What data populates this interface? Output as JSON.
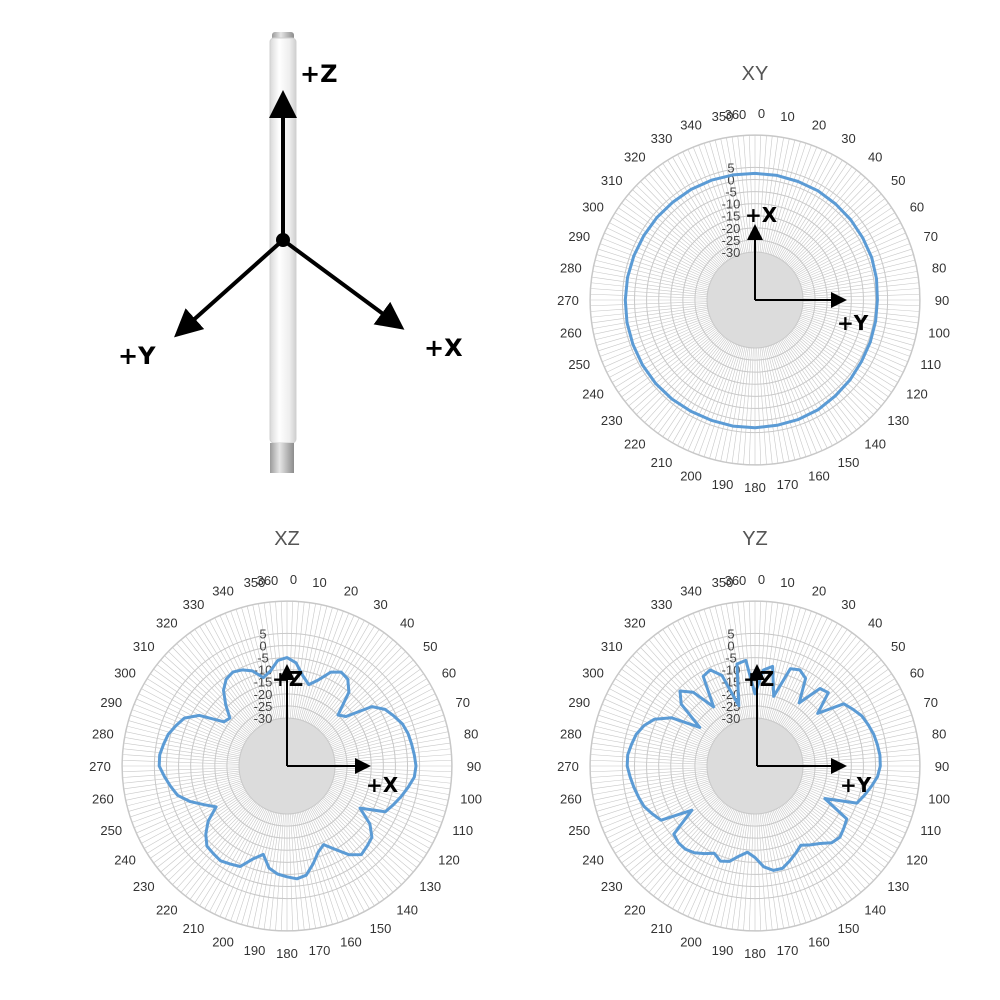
{
  "antenna_diagram": {
    "axes": [
      "+Z",
      "+Y",
      "+X"
    ]
  },
  "colors": {
    "pattern_line": "#5b9bd5",
    "grid": "#c8c8c8",
    "center_disc": "#dcdcdc"
  },
  "chart_data": [
    {
      "type": "polar-line",
      "title": "XY",
      "rlim": [
        -30,
        5
      ],
      "ring_labels": [
        "5",
        "0",
        "-5",
        "-10",
        "-15",
        "-20",
        "-25",
        "-30"
      ],
      "angle_labels": [
        "0",
        "10",
        "20",
        "30",
        "40",
        "50",
        "60",
        "70",
        "80",
        "90",
        "100",
        "110",
        "120",
        "130",
        "140",
        "150",
        "160",
        "170",
        "180",
        "190",
        "200",
        "210",
        "220",
        "230",
        "240",
        "250",
        "260",
        "270",
        "280",
        "290",
        "300",
        "310",
        "320",
        "330",
        "340",
        "350",
        "360"
      ],
      "axis_labels": [
        "+X",
        "+Y"
      ],
      "angles": [
        0,
        10,
        20,
        30,
        40,
        50,
        60,
        70,
        80,
        90,
        100,
        110,
        120,
        130,
        140,
        150,
        160,
        170,
        180,
        190,
        200,
        210,
        220,
        230,
        240,
        250,
        260,
        270,
        280,
        290,
        300,
        310,
        320,
        330,
        340,
        350
      ],
      "values": [
        2.5,
        2.5,
        2.3,
        2.3,
        2.0,
        1.8,
        1.6,
        1.5,
        1.2,
        0.8,
        0.8,
        0.9,
        1.0,
        1.5,
        1.9,
        2.5,
        2.7,
        2.8,
        3.0,
        3.1,
        3.1,
        3.3,
        3.6,
        3.8,
        3.9,
        3.9,
        3.9,
        3.8,
        3.7,
        3.5,
        3.3,
        3.2,
        3.0,
        3.0,
        2.9,
        2.7
      ],
      "grid": true
    },
    {
      "type": "polar-line",
      "title": "XZ",
      "rlim": [
        -30,
        5
      ],
      "ring_labels": [
        "5",
        "0",
        "-5",
        "-10",
        "-15",
        "-20",
        "-25",
        "-30"
      ],
      "angle_labels": [
        "0",
        "10",
        "20",
        "30",
        "40",
        "50",
        "60",
        "70",
        "80",
        "90",
        "100",
        "110",
        "120",
        "130",
        "140",
        "150",
        "160",
        "170",
        "180",
        "190",
        "200",
        "210",
        "220",
        "230",
        "240",
        "250",
        "260",
        "270",
        "280",
        "290",
        "300",
        "310",
        "320",
        "330",
        "340",
        "350",
        "360"
      ],
      "axis_labels": [
        "+Z",
        "+X"
      ],
      "angles": [
        0,
        5,
        10,
        15,
        20,
        25,
        30,
        35,
        40,
        45,
        50,
        55,
        60,
        65,
        70,
        75,
        80,
        85,
        90,
        95,
        100,
        105,
        110,
        115,
        120,
        125,
        130,
        135,
        140,
        145,
        150,
        155,
        160,
        165,
        170,
        175,
        180,
        185,
        190,
        195,
        200,
        205,
        210,
        215,
        220,
        225,
        230,
        235,
        240,
        245,
        250,
        255,
        260,
        265,
        270,
        275,
        280,
        285,
        290,
        295,
        300,
        305,
        310,
        315,
        320,
        325,
        330,
        335,
        340,
        345,
        350,
        355
      ],
      "values": [
        -5,
        -7,
        -12,
        -15,
        -12,
        -7,
        -5,
        -6,
        -10,
        -20,
        -18,
        -7,
        -3,
        -1,
        1,
        2,
        2.5,
        3,
        3.5,
        3,
        1,
        -1,
        -3,
        -5,
        -15,
        -8,
        -4,
        -3,
        -2,
        -5,
        -10,
        -14,
        -12,
        -8,
        -4,
        -3,
        -4,
        -5,
        -7,
        -12,
        -9,
        -4,
        -3,
        -2,
        -2.5,
        -3,
        -6,
        -10,
        -16,
        -12,
        -7,
        -3,
        -1,
        1,
        3,
        3,
        2,
        1,
        -1,
        -3,
        -8,
        -18,
        -19,
        -14,
        -9,
        -6,
        -5,
        -6,
        -8,
        -12,
        -10,
        -6
      ],
      "grid": true
    },
    {
      "type": "polar-line",
      "title": "YZ",
      "rlim": [
        -30,
        5
      ],
      "ring_labels": [
        "5",
        "0",
        "-5",
        "-10",
        "-15",
        "-20",
        "-25",
        "-30"
      ],
      "angle_labels": [
        "0",
        "10",
        "20",
        "30",
        "40",
        "50",
        "60",
        "70",
        "80",
        "90",
        "100",
        "110",
        "120",
        "130",
        "140",
        "150",
        "160",
        "170",
        "180",
        "190",
        "200",
        "210",
        "220",
        "230",
        "240",
        "250",
        "260",
        "270",
        "280",
        "290",
        "300",
        "310",
        "320",
        "330",
        "340",
        "350",
        "360"
      ],
      "axis_labels": [
        "+Z",
        "+Y"
      ],
      "angles": [
        0,
        5,
        10,
        15,
        20,
        25,
        30,
        35,
        40,
        45,
        50,
        55,
        60,
        65,
        70,
        75,
        80,
        85,
        90,
        95,
        100,
        105,
        110,
        115,
        120,
        125,
        130,
        135,
        140,
        145,
        150,
        155,
        160,
        165,
        170,
        175,
        180,
        185,
        190,
        195,
        200,
        205,
        210,
        215,
        220,
        225,
        230,
        235,
        240,
        245,
        250,
        255,
        260,
        265,
        270,
        275,
        280,
        285,
        290,
        295,
        300,
        305,
        310,
        315,
        320,
        325,
        330,
        335,
        340,
        345,
        350,
        355
      ],
      "values": [
        -20,
        -10,
        -8,
        -20,
        -7,
        -6,
        -8,
        -18,
        -8,
        -7,
        -16,
        -5,
        -3,
        -1,
        0,
        1,
        1.5,
        2,
        2,
        1,
        -1,
        -3,
        -5,
        -18,
        -6,
        -5,
        -4,
        -5,
        -8,
        -10,
        -12,
        -10,
        -8,
        -6,
        -6,
        -8,
        -12,
        -14,
        -12,
        -9,
        -8,
        -10,
        -8,
        -6,
        -5,
        -5,
        -6,
        -18,
        -5,
        -3,
        -1,
        0,
        1,
        2,
        3,
        3,
        2,
        1,
        -1,
        -4,
        -10,
        -22,
        -10,
        -6,
        -10,
        -20,
        -7,
        -6,
        -10,
        -24,
        -7,
        -6
      ],
      "grid": true
    }
  ]
}
